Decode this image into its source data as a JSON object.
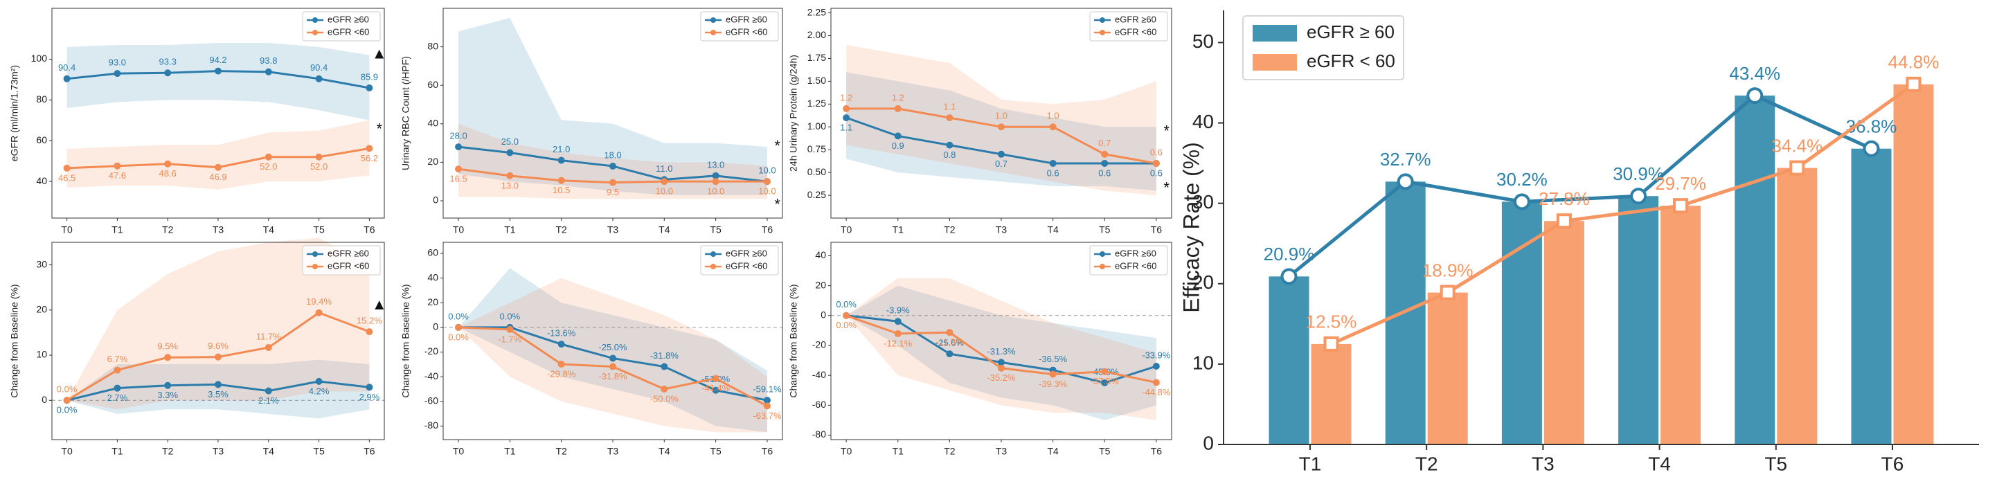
{
  "chart_data": [
    {
      "type": "line",
      "ylabel": "eGFR (ml/min/1.73m²)",
      "categories": [
        "T0",
        "T1",
        "T2",
        "T3",
        "T4",
        "T5",
        "T6"
      ],
      "ylim": [
        22,
        125
      ],
      "yticks": [
        40,
        60,
        80,
        100
      ],
      "legend": "upper right",
      "frame": true,
      "annotations": [
        "▲",
        "*"
      ],
      "series": [
        {
          "name": "eGFR ≥60",
          "color": "#2b7bab",
          "values": [
            90.4,
            93.0,
            93.3,
            94.2,
            93.8,
            90.4,
            85.9
          ],
          "value_labels": [
            "90.4",
            "93.0",
            "93.3",
            "94.2",
            "93.8",
            "90.4",
            "85.9"
          ],
          "band": {
            "upper": [
              106,
              107,
              107,
              108,
              108,
              106,
              102
            ],
            "lower": [
              76,
              79,
              80,
              80,
              79,
              75,
              70
            ]
          }
        },
        {
          "name": "eGFR <60",
          "color": "#f28a52",
          "values": [
            46.5,
            47.6,
            48.6,
            46.9,
            52.0,
            52.0,
            56.2
          ],
          "value_labels": [
            "46.5",
            "47.6",
            "48.6",
            "46.9",
            "52.0",
            "52.0",
            "56.2"
          ],
          "band": {
            "upper": [
              56,
              57,
              58,
              58,
              64,
              65,
              70
            ],
            "lower": [
              37,
              38,
              38,
              36,
              40,
              40,
              43
            ]
          }
        }
      ]
    },
    {
      "type": "line",
      "ylabel": "Urinary RBC Count (/HPF)",
      "categories": [
        "T0",
        "T1",
        "T2",
        "T3",
        "T4",
        "T5",
        "T6"
      ],
      "ylim": [
        -9,
        100
      ],
      "yticks": [
        0,
        20,
        40,
        60,
        80
      ],
      "legend": "upper right",
      "frame": true,
      "annotations": [
        "*",
        "*"
      ],
      "series": [
        {
          "name": "eGFR ≥60",
          "color": "#2b7bab",
          "values": [
            28.0,
            25.0,
            21.0,
            18.0,
            11.0,
            13.0,
            10.0
          ],
          "value_labels": [
            "28.0",
            "25.0",
            "21.0",
            "18.0",
            "11.0",
            "13.0",
            "10.0"
          ],
          "band": {
            "upper": [
              88,
              95,
              42,
              40,
              30,
              30,
              28
            ],
            "lower": [
              14,
              10,
              8,
              5,
              3,
              3,
              3
            ]
          }
        },
        {
          "name": "eGFR <60",
          "color": "#f28a52",
          "values": [
            16.5,
            13.0,
            10.5,
            9.5,
            10.0,
            10.0,
            10.0
          ],
          "value_labels": [
            "16.5",
            "13.0",
            "10.5",
            "9.5",
            "10.0",
            "10.0",
            "10.0"
          ],
          "band": {
            "upper": [
              40,
              30,
              25,
              22,
              20,
              20,
              18
            ],
            "lower": [
              2,
              2,
              1,
              1,
              1,
              1,
              1
            ]
          }
        }
      ]
    },
    {
      "type": "line",
      "ylabel": "24h Urinary Protein (g/24h)",
      "categories": [
        "T0",
        "T1",
        "T2",
        "T3",
        "T4",
        "T5",
        "T6"
      ],
      "ylim": [
        0,
        2.3
      ],
      "yticks": [
        {
          "value": 0.25,
          "label": "0.25"
        },
        {
          "value": 0.5,
          "label": "0.50"
        },
        {
          "value": 0.75,
          "label": "0.75"
        },
        {
          "value": 1,
          "label": "1.00"
        },
        {
          "value": 1.25,
          "label": "1.25"
        },
        {
          "value": 1.5,
          "label": "1.50"
        },
        {
          "value": 1.75,
          "label": "1.75"
        },
        {
          "value": 2,
          "label": "2.00"
        },
        {
          "value": 2.25,
          "label": "2.25"
        }
      ],
      "legend": "upper right",
      "frame": true,
      "annotations": [
        "*",
        "*"
      ],
      "series": [
        {
          "name": "eGFR ≥60",
          "color": "#2b7bab",
          "values": [
            1.1,
            0.9,
            0.8,
            0.7,
            0.6,
            0.6,
            0.6
          ],
          "value_labels": [
            "1.1",
            "0.9",
            "0.8",
            "0.7",
            "0.6",
            "0.6",
            "0.6"
          ],
          "band": {
            "upper": [
              1.6,
              1.5,
              1.4,
              1.2,
              1.1,
              1.0,
              1.0
            ],
            "lower": [
              0.65,
              0.5,
              0.45,
              0.4,
              0.35,
              0.35,
              0.3
            ]
          }
        },
        {
          "name": "eGFR <60",
          "color": "#f28a52",
          "values": [
            1.2,
            1.2,
            1.1,
            1.0,
            1.0,
            0.7,
            0.6
          ],
          "value_labels": [
            "1.2",
            "1.2",
            "1.1",
            "1.0",
            "1.0",
            "0.7",
            "0.6"
          ],
          "band": {
            "upper": [
              1.9,
              1.8,
              1.7,
              1.3,
              1.25,
              1.3,
              1.5
            ],
            "lower": [
              0.8,
              0.7,
              0.6,
              0.5,
              0.4,
              0.3,
              0.25
            ]
          }
        }
      ]
    },
    {
      "type": "line",
      "ylabel": "Change from Baseline (%)",
      "categories": [
        "T0",
        "T1",
        "T2",
        "T3",
        "T4",
        "T5",
        "T6"
      ],
      "ylim": [
        -8.7,
        35
      ],
      "yticks": [
        0,
        10,
        20,
        30
      ],
      "legend": "upper right",
      "frame": true,
      "reference_line": 0,
      "annotations": [
        "▲"
      ],
      "series": [
        {
          "name": "eGFR ≥60",
          "color": "#2b7bab",
          "values": [
            0.0,
            2.7,
            3.3,
            3.5,
            2.1,
            4.2,
            2.9
          ],
          "value_labels": [
            "0.0%",
            "2.7%",
            "3.3%",
            "3.5%",
            "2.1%",
            "4.2%",
            "2.9%"
          ],
          "band": {
            "upper": [
              0,
              8,
              8,
              8,
              8,
              9,
              8
            ],
            "lower": [
              0,
              -3,
              -2,
              -2,
              -3,
              -4,
              -2
            ]
          }
        },
        {
          "name": "eGFR <60",
          "color": "#f28a52",
          "values": [
            0.0,
            6.7,
            9.5,
            9.6,
            11.7,
            19.4,
            15.2
          ],
          "value_labels": [
            "0.0%",
            "6.7%",
            "9.5%",
            "9.6%",
            "11.7%",
            "19.4%",
            "15.2%"
          ],
          "band": {
            "upper": [
              0,
              20,
              28,
              33,
              35,
              36,
              30
            ],
            "lower": [
              0,
              -2,
              0,
              0,
              0,
              2,
              2
            ]
          }
        }
      ]
    },
    {
      "type": "line",
      "ylabel": "Change from Baseline (%)",
      "categories": [
        "T0",
        "T1",
        "T2",
        "T3",
        "T4",
        "T5",
        "T6"
      ],
      "ylim": [
        -91,
        69
      ],
      "yticks": [
        -80,
        -60,
        -40,
        -20,
        0,
        20,
        40,
        60
      ],
      "legend": "upper right",
      "frame": true,
      "reference_line": 0,
      "annotations": [],
      "series": [
        {
          "name": "eGFR ≥60",
          "color": "#2b7bab",
          "values": [
            0.0,
            0.0,
            -13.6,
            -25.0,
            -31.8,
            -51.0,
            -59.1
          ],
          "value_labels": [
            "0.0%",
            "0.0%",
            "-13.6%",
            "-25.0%",
            "-31.8%",
            "-51.0%",
            "-59.1%"
          ],
          "band": {
            "upper": [
              0,
              48,
              20,
              10,
              0,
              -10,
              -35
            ],
            "lower": [
              0,
              -20,
              -40,
              -50,
              -60,
              -80,
              -85
            ]
          }
        },
        {
          "name": "eGFR <60",
          "color": "#f28a52",
          "values": [
            0.0,
            -1.7,
            -29.8,
            -31.8,
            -50.0,
            -41.4,
            -63.7
          ],
          "value_labels": [
            "0.0%",
            "-1.7%",
            "-29.8%",
            "-31.8%",
            "-50.0%",
            "-41.4%",
            "-63.7%"
          ],
          "band": {
            "upper": [
              0,
              20,
              40,
              25,
              10,
              -10,
              -40
            ],
            "lower": [
              0,
              -40,
              -60,
              -70,
              -80,
              -85,
              -85
            ]
          }
        }
      ]
    },
    {
      "type": "line",
      "ylabel": "Change from Baseline (%)",
      "categories": [
        "T0",
        "T1",
        "T2",
        "T3",
        "T4",
        "T5",
        "T6"
      ],
      "ylim": [
        -83,
        49
      ],
      "yticks": [
        -80,
        -60,
        -40,
        -20,
        0,
        20,
        40
      ],
      "legend": "upper right",
      "frame": true,
      "reference_line": 0,
      "annotations": [],
      "series": [
        {
          "name": "eGFR ≥60",
          "color": "#2b7bab",
          "values": [
            0.0,
            -3.9,
            -25.6,
            -31.3,
            -36.5,
            -45.0,
            -33.9
          ],
          "value_labels": [
            "0.0%",
            "-3.9%",
            "-25.6%",
            "-31.3%",
            "-36.5%",
            "-45.0%",
            "-33.9%"
          ],
          "band": {
            "upper": [
              0,
              20,
              10,
              0,
              -5,
              -10,
              -15
            ],
            "lower": [
              0,
              -20,
              -45,
              -55,
              -60,
              -70,
              -60
            ]
          }
        },
        {
          "name": "eGFR <60",
          "color": "#f28a52",
          "values": [
            0.0,
            -12.1,
            -11.3,
            -35.2,
            -39.3,
            -37.5,
            -44.8
          ],
          "value_labels": [
            "0.0%",
            "-12.1%",
            "-11.3%",
            "-35.2%",
            "-39.3%",
            "-37.5%",
            "-44.8%"
          ],
          "band": {
            "upper": [
              0,
              25,
              25,
              10,
              -5,
              -15,
              -25
            ],
            "lower": [
              0,
              -40,
              -50,
              -60,
              -65,
              -65,
              -70
            ]
          }
        }
      ]
    },
    {
      "type": "bar_line",
      "ylabel": "Efficacy Rate (%)",
      "categories": [
        "T1",
        "T2",
        "T3",
        "T4",
        "T5",
        "T6"
      ],
      "ylim": [
        0,
        54
      ],
      "yticks": [
        0,
        10,
        20,
        30,
        40,
        50
      ],
      "legend": "upper left",
      "frame": false,
      "series": [
        {
          "name": "eGFR ≥ 60",
          "color": "#4393b2",
          "line_color": "#2e80a8",
          "marker": "circle",
          "values": [
            20.9,
            32.7,
            30.2,
            30.9,
            43.4,
            36.8
          ],
          "value_labels": [
            "20.9%",
            "32.7%",
            "30.2%",
            "30.9%",
            "43.4%",
            "36.8%"
          ]
        },
        {
          "name": "eGFR < 60",
          "color": "#f9a070",
          "line_color": "#f59663",
          "marker": "square",
          "values": [
            12.5,
            18.9,
            27.8,
            29.7,
            34.4,
            44.8
          ],
          "value_labels": [
            "12.5%",
            "18.9%",
            "27.8%",
            "29.7%",
            "34.4%",
            "44.8%"
          ]
        }
      ]
    }
  ]
}
